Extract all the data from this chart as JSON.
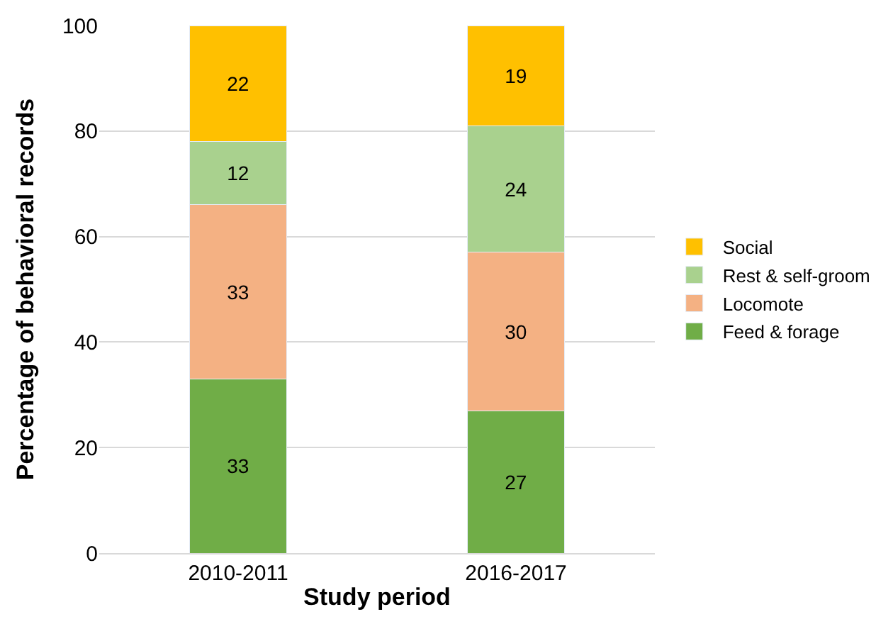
{
  "chart_data": {
    "type": "bar",
    "stacked": true,
    "xlabel": "Study period",
    "ylabel": "Percentage of behavioral records",
    "categories": [
      "2010-2011",
      "2016-2017"
    ],
    "series": [
      {
        "name": "Feed & forage",
        "color": "#70ad47",
        "values": [
          33,
          27
        ]
      },
      {
        "name": "Locomote",
        "color": "#f4b183",
        "values": [
          33,
          30
        ]
      },
      {
        "name": "Rest & self-groom",
        "color": "#a9d18e",
        "values": [
          12,
          24
        ]
      },
      {
        "name": "Social",
        "color": "#ffc000",
        "values": [
          22,
          19
        ]
      }
    ],
    "ylim": [
      0,
      100
    ],
    "yticks": [
      0,
      20,
      40,
      60,
      80,
      100
    ],
    "grid": "y",
    "legend": "right",
    "data_labels": true
  }
}
